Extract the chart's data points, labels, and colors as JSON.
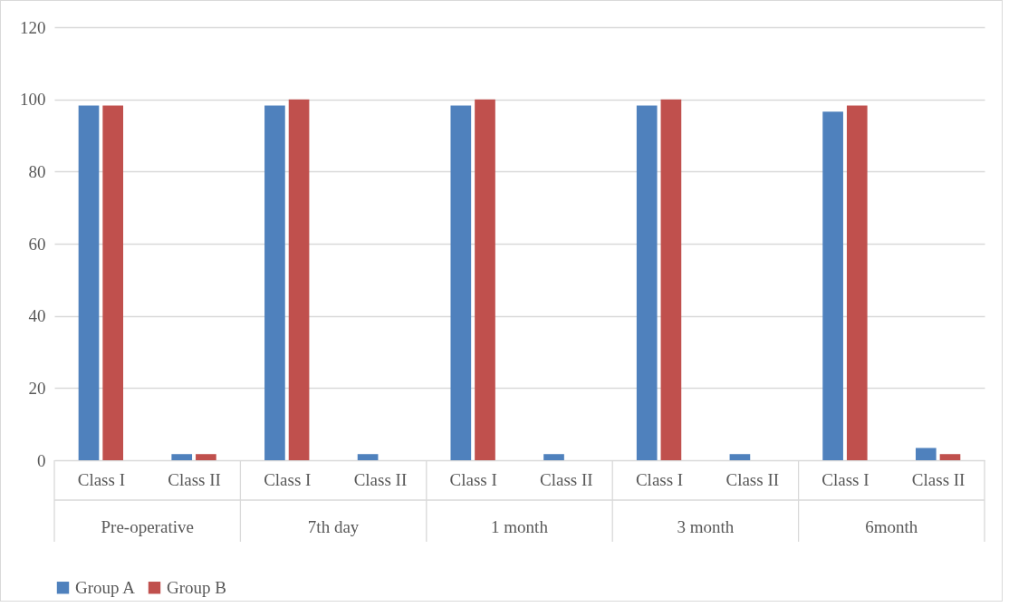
{
  "chart_data": {
    "type": "bar",
    "categories": [
      "Class I",
      "Class II",
      "Class I",
      "Class II",
      "Class I",
      "Class II",
      "Class I",
      "Class II",
      "Class I",
      "Class II"
    ],
    "series": [
      {
        "name": "Group A",
        "color": "#4f81bd",
        "values": [
          98.3,
          1.7,
          98.3,
          1.7,
          98.3,
          1.7,
          98.3,
          1.7,
          96.6,
          3.4
        ]
      },
      {
        "name": "Group B",
        "color": "#c0504d",
        "values": [
          98.3,
          1.7,
          100,
          0,
          100,
          0,
          100,
          0,
          98.3,
          1.7
        ]
      }
    ],
    "annotations": [
      "Pre-operative",
      "7th day",
      "1 month",
      "3 month",
      "6month"
    ],
    "ylim": [
      0,
      120
    ],
    "yticks": [
      0,
      20,
      40,
      60,
      80,
      100,
      120
    ],
    "grid": "y",
    "legend": "bottom"
  }
}
